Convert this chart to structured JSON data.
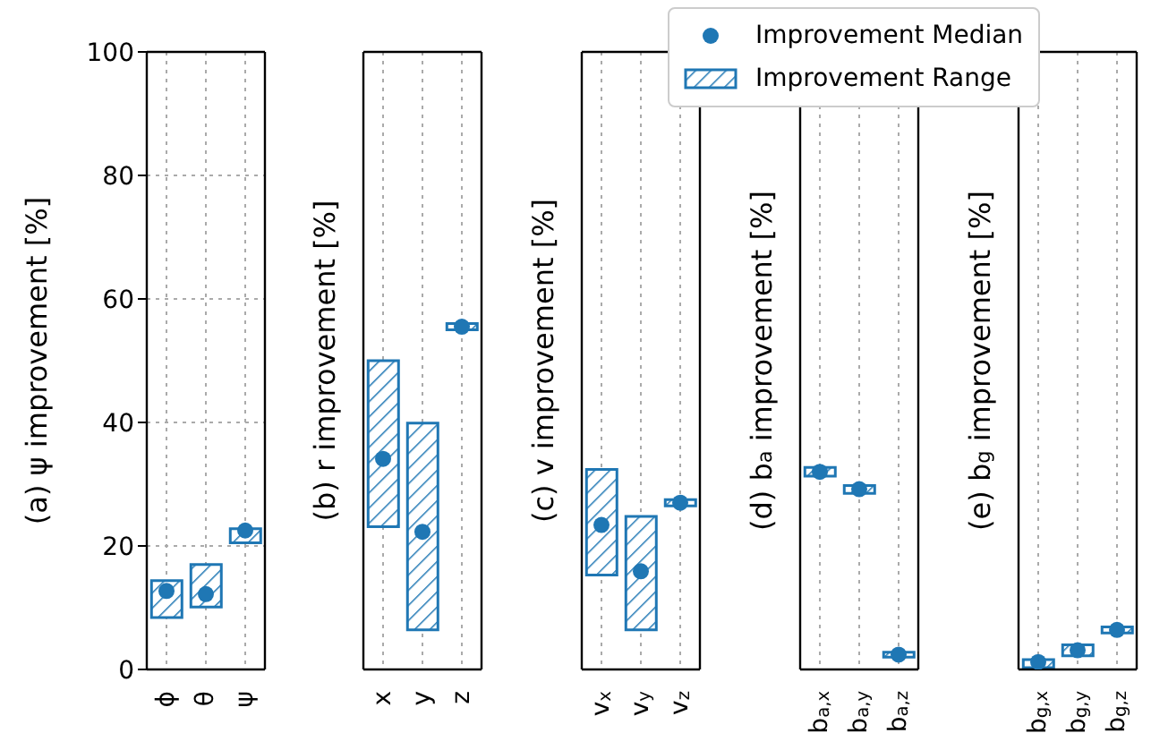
{
  "chart_data": [
    {
      "type": "bar",
      "ylabel": "(a) ψ improvement [%]",
      "categories": [
        "ϕ",
        "θ",
        "ψ"
      ],
      "series": [
        {
          "type": "scatter",
          "color": "#1f77b4",
          "values": [
            12.7,
            12.2,
            22.5
          ]
        },
        {
          "type": "bar",
          "color": "#1f77b4",
          "base": [
            8.4,
            10.1,
            20.5
          ],
          "values": [
            6.0,
            6.9,
            2.3
          ]
        }
      ],
      "ylim": [
        0,
        100
      ],
      "yticks": [
        0,
        20,
        40,
        60,
        80,
        100
      ],
      "grid": true,
      "marker": "circle"
    },
    {
      "type": "bar",
      "ylabel": "(b) r improvement [%]",
      "categories": [
        "x",
        "y",
        "z"
      ],
      "series": [
        {
          "type": "scatter",
          "color": "#1f77b4",
          "values": [
            34.1,
            22.3,
            55.5
          ]
        },
        {
          "type": "bar",
          "color": "#1f77b4",
          "base": [
            23.1,
            6.4,
            55
          ],
          "values": [
            26.9,
            33.5,
            1
          ]
        }
      ],
      "ylim": [
        0,
        100
      ],
      "yticks": [
        0,
        20,
        40,
        60,
        80,
        100
      ],
      "grid": true,
      "marker": "circle",
      "tick_labels": "x"
    },
    {
      "type": "bar",
      "ylabel": "(c) v improvement [%]",
      "categories": [
        "v$_{x}$",
        "v$_{y}$",
        "v$_{z}$"
      ],
      "series": [
        {
          "type": "scatter",
          "color": "#1f77b4",
          "values": [
            23.4,
            15.9,
            27
          ]
        },
        {
          "type": "bar",
          "color": "#1f77b4",
          "base": [
            15.3,
            6.4,
            26.5
          ],
          "values": [
            17.1,
            18.4,
            1
          ]
        }
      ],
      "ylim": [
        0,
        100
      ],
      "yticks": [
        0,
        20,
        40,
        60,
        80,
        100
      ],
      "grid": true,
      "marker": "circle",
      "tick_labels": "x"
    },
    {
      "type": "bar",
      "ylabel": "(d) b$_{a}$ improvement [%]",
      "categories": [
        "b$_{a,x}$",
        "b$_{a,y}$",
        "b$_{a,z}$"
      ],
      "series": [
        {
          "name": "Improvement Median",
          "type": "scatter",
          "color": "#1f77b4",
          "values": [
            32,
            29.2,
            2.4
          ]
        },
        {
          "name": "Improvement Range",
          "type": "bar",
          "color": "#1f77b4",
          "base": [
            31.3,
            28.5,
            2
          ],
          "values": [
            1.4,
            1.3,
            0.8
          ]
        }
      ],
      "ylim": [
        0,
        100
      ],
      "yticks": [
        0,
        20,
        40,
        60,
        80,
        100
      ],
      "grid": true,
      "marker": "circle",
      "tick_labels": "x",
      "legend": "top right"
    },
    {
      "type": "bar",
      "ylabel": "(e) b$_{g}$ improvement [%]",
      "categories": [
        "b$_{g,x}$",
        "b$_{g,y}$",
        "b$_{g,z}$"
      ],
      "series": [
        {
          "type": "scatter",
          "color": "#1f77b4",
          "values": [
            1.2,
            3.1,
            6.4
          ]
        },
        {
          "type": "bar",
          "color": "#1f77b4",
          "base": [
            0.3,
            2.2,
            5.9
          ],
          "values": [
            1.3,
            1.8,
            1.0
          ]
        }
      ],
      "ylim": [
        0,
        100
      ],
      "yticks": [
        0,
        20,
        40,
        60,
        80,
        100
      ],
      "grid": true,
      "marker": "circle",
      "tick_labels": "x"
    }
  ]
}
